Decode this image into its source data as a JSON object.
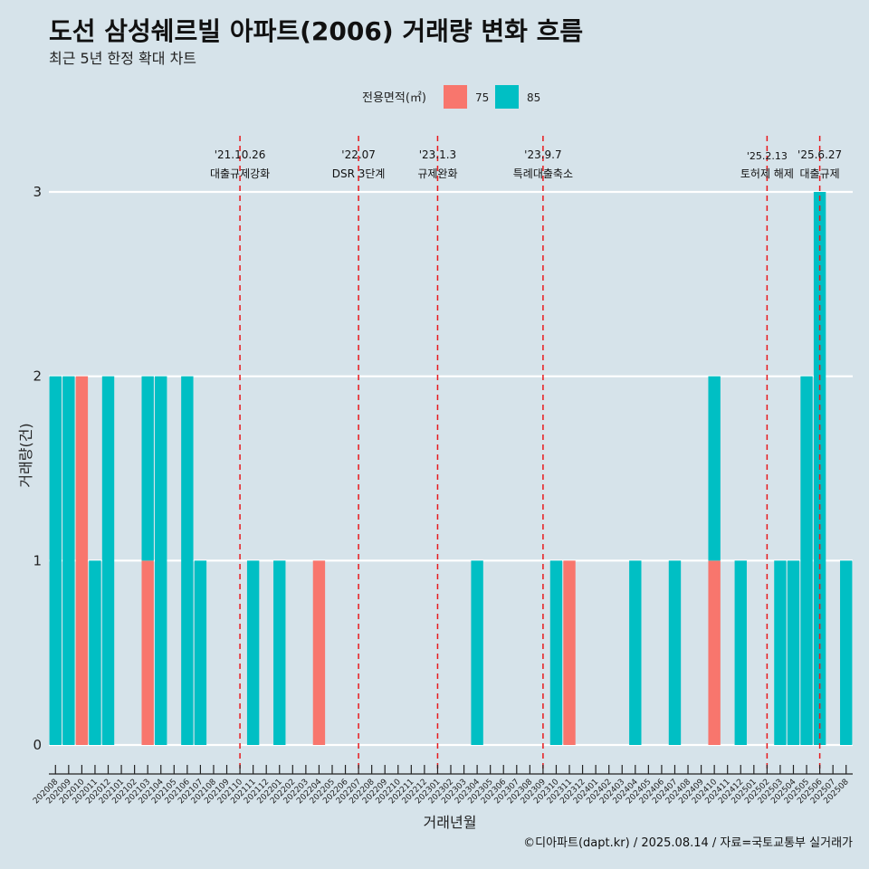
{
  "page": {
    "title": "도선 삼성쉐르빌 아파트(2006) 거래량 변화 흐름",
    "subtitle": "최근 5년 한정 확대 차트",
    "caption": "©디아파트(dapt.kr) / 2025.08.14 / 자료=국토교통부 실거래가"
  },
  "chart_data": {
    "type": "bar",
    "stacked": true,
    "xlabel": "거래년월",
    "ylabel": "거래량(건)",
    "ylim": [
      0,
      3
    ],
    "yticks": [
      0,
      1,
      2,
      3
    ],
    "grid": true,
    "legend": {
      "title": "전용면적(㎡)",
      "placement": "top"
    },
    "colors": {
      "75": "#f8766d",
      "85": "#00bfc4",
      "event_line": "#e8191c",
      "grid": "#ffffff"
    },
    "categories": [
      "202008",
      "202009",
      "202010",
      "202011",
      "202012",
      "202101",
      "202102",
      "202103",
      "202104",
      "202105",
      "202106",
      "202107",
      "202108",
      "202109",
      "202110",
      "202111",
      "202112",
      "202201",
      "202202",
      "202203",
      "202204",
      "202205",
      "202206",
      "202207",
      "202208",
      "202209",
      "202210",
      "202211",
      "202212",
      "202301",
      "202302",
      "202303",
      "202304",
      "202305",
      "202306",
      "202307",
      "202308",
      "202309",
      "202310",
      "202311",
      "202312",
      "202401",
      "202402",
      "202403",
      "202404",
      "202405",
      "202406",
      "202407",
      "202408",
      "202409",
      "202410",
      "202411",
      "202412",
      "202501",
      "202502",
      "202503",
      "202504",
      "202505",
      "202506",
      "202507",
      "202508"
    ],
    "series": [
      {
        "name": "75",
        "values": [
          0,
          0,
          2,
          0,
          0,
          0,
          0,
          1,
          0,
          0,
          0,
          0,
          0,
          0,
          0,
          0,
          0,
          0,
          0,
          0,
          1,
          0,
          0,
          0,
          0,
          0,
          0,
          0,
          0,
          0,
          0,
          0,
          0,
          0,
          0,
          0,
          0,
          0,
          0,
          1,
          0,
          0,
          0,
          0,
          0,
          0,
          0,
          0,
          0,
          0,
          1,
          0,
          0,
          0,
          0,
          0,
          0,
          0,
          0,
          0,
          0
        ]
      },
      {
        "name": "85",
        "values": [
          2,
          2,
          0,
          1,
          2,
          0,
          0,
          1,
          2,
          0,
          2,
          1,
          0,
          0,
          0,
          1,
          0,
          1,
          0,
          0,
          0,
          0,
          0,
          0,
          0,
          0,
          0,
          0,
          0,
          0,
          0,
          0,
          1,
          0,
          0,
          0,
          0,
          0,
          1,
          0,
          0,
          0,
          0,
          0,
          1,
          0,
          0,
          1,
          0,
          0,
          1,
          0,
          1,
          0,
          0,
          1,
          1,
          2,
          3,
          0,
          1
        ]
      }
    ],
    "events": [
      {
        "date": "'21.10.26",
        "label": "대출규제강화",
        "x": "202110"
      },
      {
        "date": "'22.07",
        "label": "DSR 3단계",
        "x": "202207"
      },
      {
        "date": "'23.1.3",
        "label": "규제완화",
        "x": "202301"
      },
      {
        "date": "'23.9.7",
        "label": "특례대출축소",
        "x": "202309"
      },
      {
        "date": "'25.2.13",
        "label": "토허제 해제",
        "x": "202502"
      },
      {
        "date": "'25.6.27",
        "label": "대출규제",
        "x": "202506"
      }
    ]
  }
}
